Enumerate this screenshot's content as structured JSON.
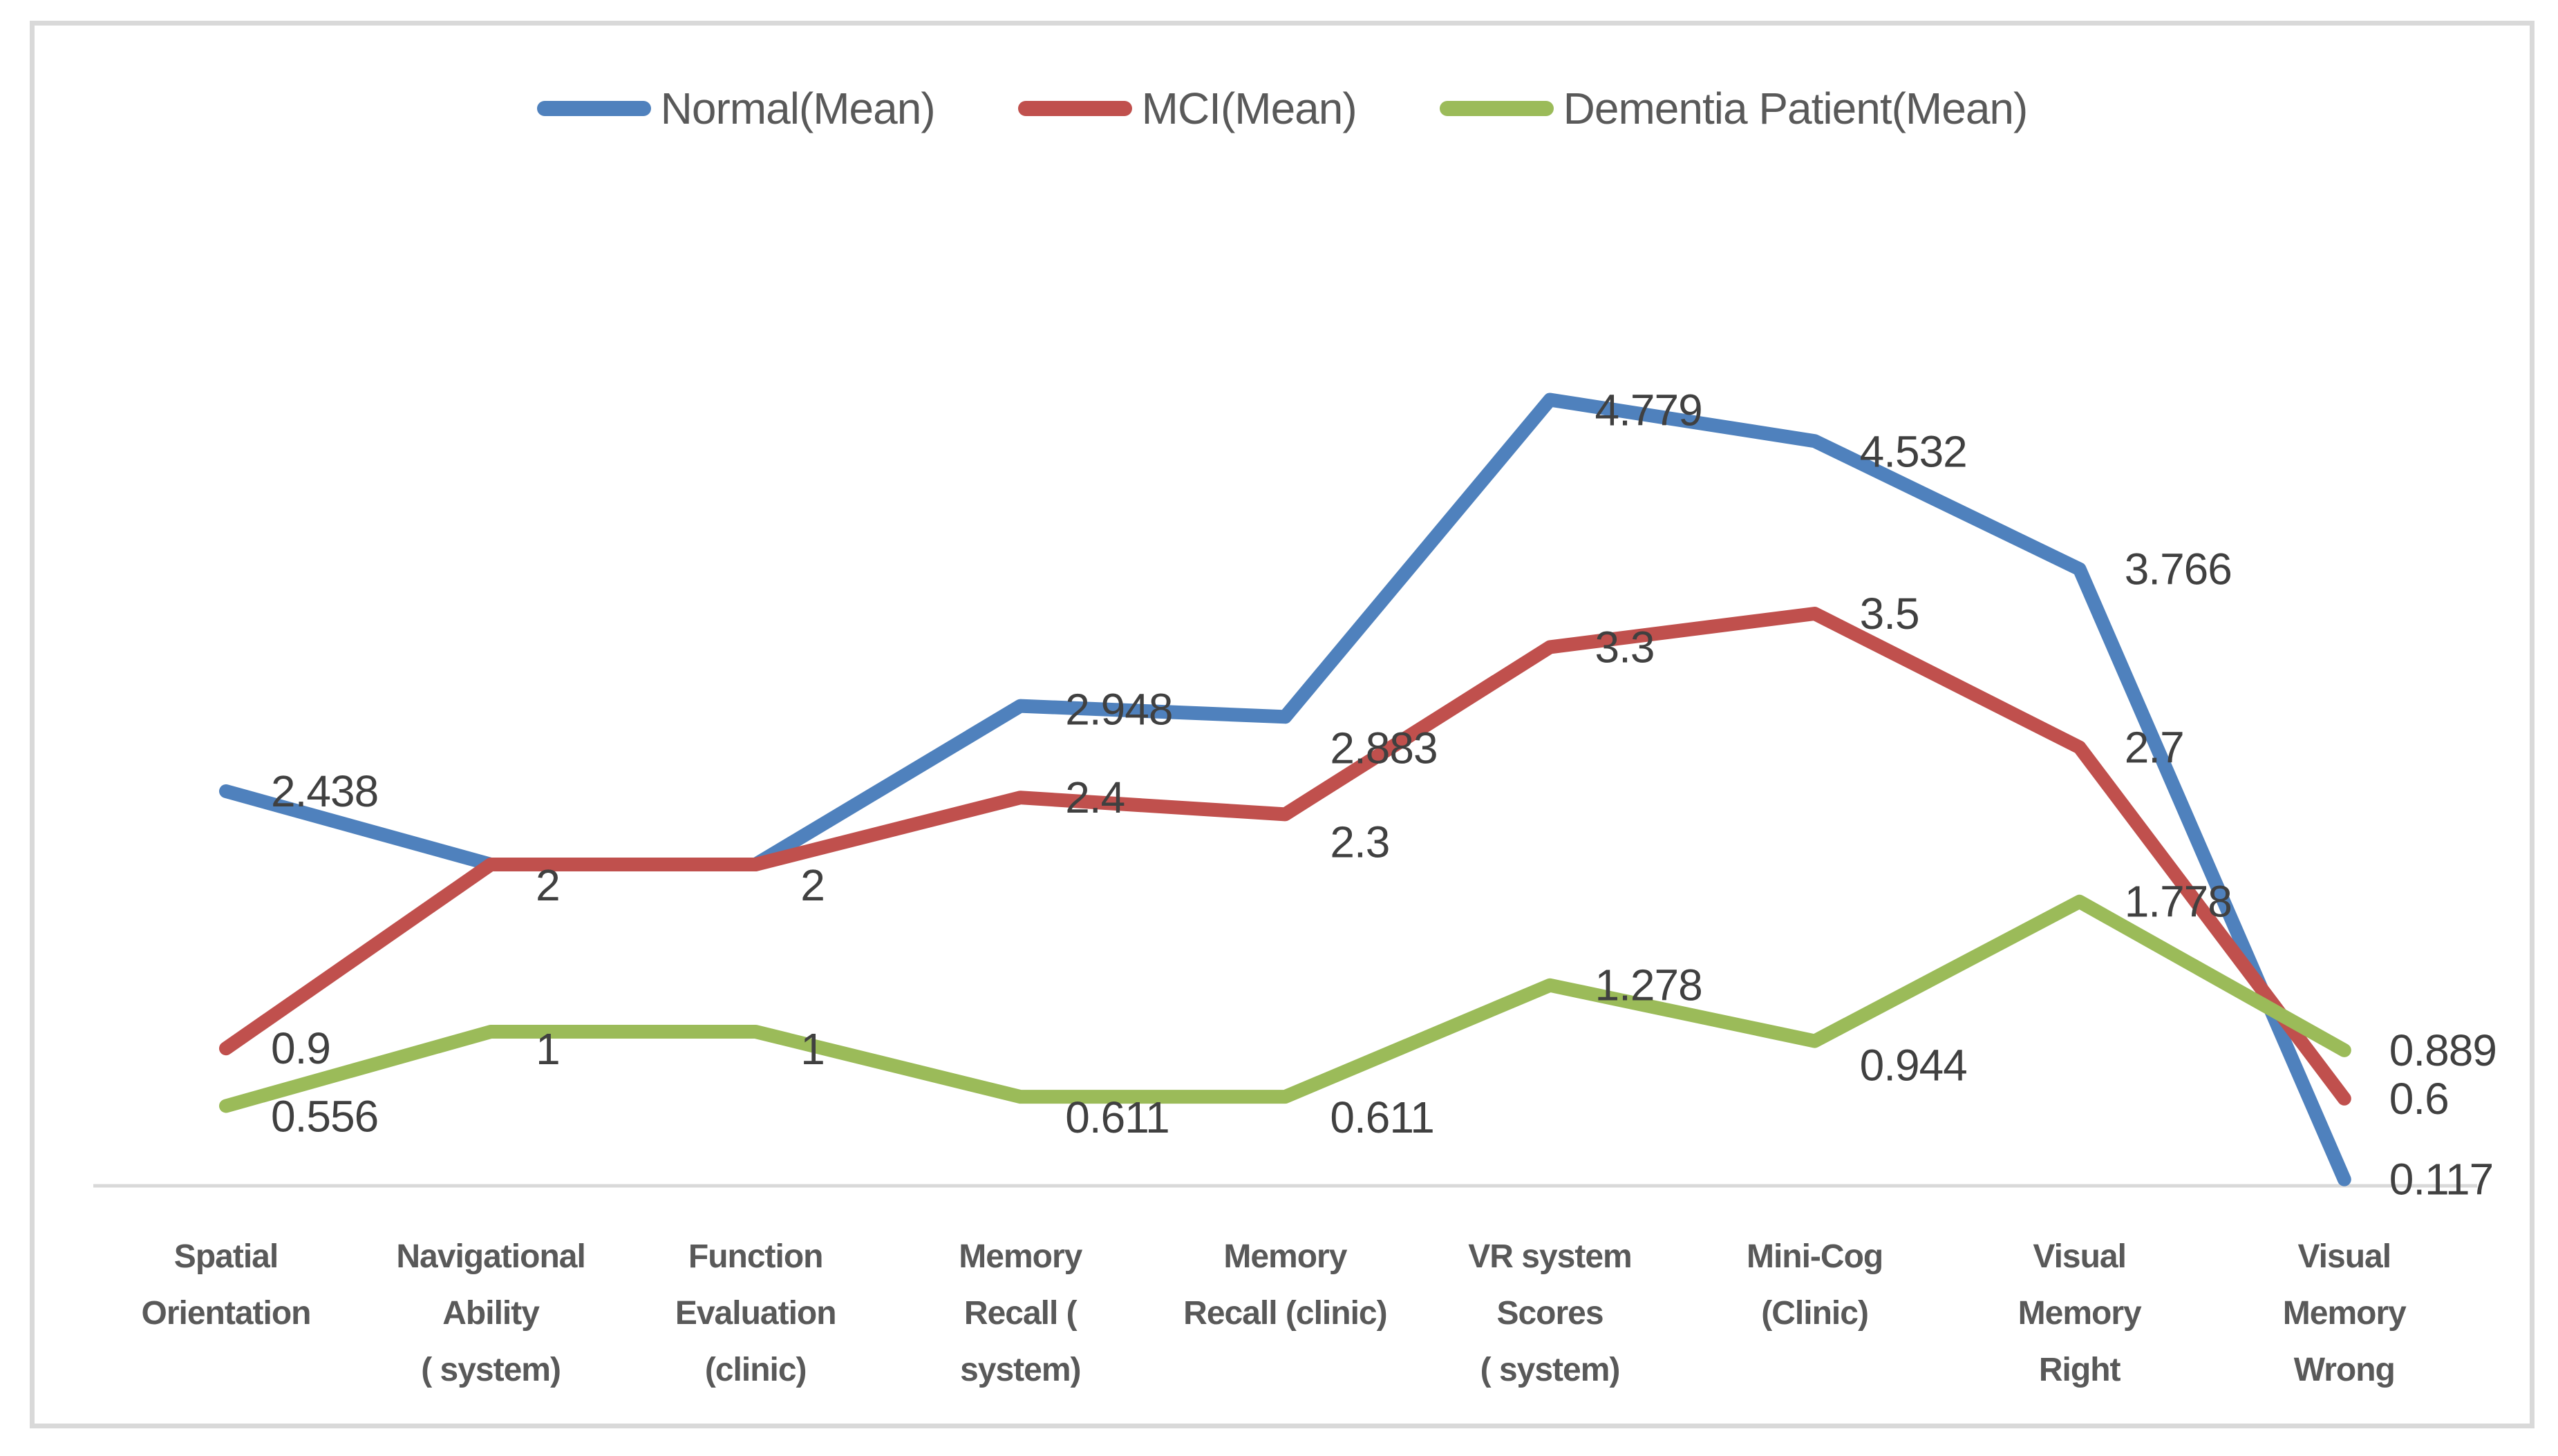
{
  "figure": {
    "background": "#ffffff",
    "border_color": "#d9d9d9",
    "axis_color": "#d9d9d9",
    "data_label_color": "#404040",
    "tick_label_color": "#595959"
  },
  "legend": [
    {
      "label": "Normal(Mean)",
      "color": "#4f81bd"
    },
    {
      "label": "MCI(Mean)",
      "color": "#c0504d"
    },
    {
      "label": "Dementia Patient(Mean)",
      "color": "#9bbb59"
    }
  ],
  "chart_data": {
    "type": "line",
    "title": "",
    "xlabel": "",
    "ylabel": "",
    "grid": false,
    "legend_position": "top-center",
    "ylim": [
      0,
      6
    ],
    "categories": [
      "Spatial Orientation",
      "Navigational Ability ( system)",
      "Function Evaluation (clinic)",
      "Memory Recall ( system)",
      "Memory Recall (clinic)",
      "VR system Scores ( system)",
      "Mini-Cog (Clinic)",
      "Visual Memory Right",
      "Visual Memory Wrong"
    ],
    "category_lines": [
      [
        "Spatial",
        "Orientation"
      ],
      [
        "Navigational",
        "Ability",
        "( system)"
      ],
      [
        "Function",
        "Evaluation",
        "(clinic)"
      ],
      [
        "Memory",
        "Recall (",
        "system)"
      ],
      [
        "Memory",
        "Recall (clinic)"
      ],
      [
        "VR system",
        "Scores",
        "( system)"
      ],
      [
        "Mini-Cog",
        "(Clinic)"
      ],
      [
        "Visual",
        "Memory",
        "Right"
      ],
      [
        "Visual",
        "Memory",
        "Wrong"
      ]
    ],
    "series": [
      {
        "name": "Normal(Mean)",
        "color": "#4f81bd",
        "values": [
          2.438,
          2,
          2,
          2.948,
          2.883,
          4.779,
          4.532,
          3.766,
          0.117
        ],
        "labels": [
          "2.438",
          "2",
          "2",
          "2.948",
          "2.883",
          "4.779",
          "4.532",
          "3.766",
          "0.117"
        ]
      },
      {
        "name": "MCI(Mean)",
        "color": "#c0504d",
        "values": [
          0.9,
          2,
          2,
          2.4,
          2.3,
          3.3,
          3.5,
          2.7,
          0.6
        ],
        "labels": [
          "0.9",
          "2",
          "2",
          "2.4",
          "2.3",
          "3.3",
          "3.5",
          "2.7",
          "0.6"
        ]
      },
      {
        "name": "Dementia Patient(Mean)",
        "color": "#9bbb59",
        "values": [
          0.556,
          1,
          1,
          0.611,
          0.611,
          1.278,
          0.944,
          1.778,
          0.889
        ],
        "labels": [
          "0.556",
          "1",
          "1",
          "0.611",
          "0.611",
          "1.278",
          "0.944",
          "1.778",
          "0.889"
        ]
      }
    ]
  }
}
